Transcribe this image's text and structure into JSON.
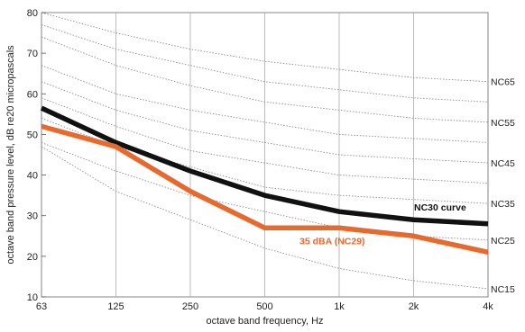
{
  "chart_data": {
    "type": "line",
    "xlabel": "octave band frequency, Hz",
    "ylabel": "octave band pressure level, dB re20 micropascals",
    "x_ticks": [
      "63",
      "125",
      "250",
      "500",
      "1k",
      "2k",
      "4k"
    ],
    "y_ticks": [
      10,
      20,
      30,
      40,
      50,
      60,
      70,
      80
    ],
    "ylim": [
      10,
      80
    ],
    "grid": true,
    "reference_curves": [
      {
        "name": "NC65",
        "values": [
          80,
          75,
          71,
          68,
          66,
          64,
          63
        ]
      },
      {
        "name": "",
        "values": [
          77,
          71,
          67,
          63,
          61,
          59,
          58
        ]
      },
      {
        "name": "NC55",
        "values": [
          74,
          67,
          62,
          58,
          56,
          54,
          53
        ]
      },
      {
        "name": "",
        "values": [
          67,
          60,
          56,
          53,
          50,
          49,
          48
        ]
      },
      {
        "name": "NC45",
        "values": [
          63,
          56,
          51,
          48,
          45,
          44,
          43
        ]
      },
      {
        "name": "",
        "values": [
          59,
          52,
          46,
          43,
          40,
          39,
          38
        ]
      },
      {
        "name": "NC35",
        "values": [
          54,
          47,
          42,
          37,
          35,
          34,
          33
        ]
      },
      {
        "name": "NC25",
        "values": [
          48,
          41,
          35,
          31,
          27,
          25,
          24
        ]
      },
      {
        "name": "NC15",
        "values": [
          47,
          36,
          29,
          22,
          17,
          14,
          12
        ]
      }
    ],
    "series": [
      {
        "name": "NC30 curve",
        "color": "#111111",
        "values": [
          56.5,
          48,
          41,
          35,
          31,
          29,
          28
        ]
      },
      {
        "name": "35 dBA (NC29)",
        "color": "#e8692e",
        "values": [
          52,
          47,
          36,
          27,
          27,
          25,
          21
        ]
      }
    ]
  }
}
